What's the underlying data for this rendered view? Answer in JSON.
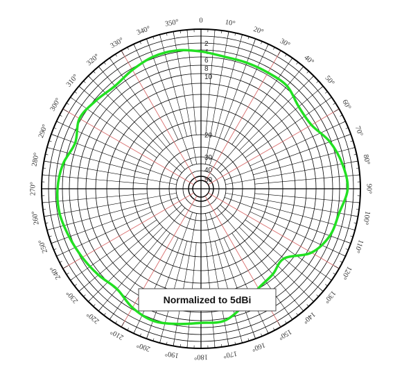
{
  "chart_data": {
    "type": "polar-line",
    "title": "",
    "annotation": "Normalized to 5dBi",
    "angle_tick_labels": [
      "0",
      "10°",
      "20°",
      "30°",
      "40°",
      "50°",
      "60°",
      "70°",
      "80°",
      "90°",
      "100°",
      "110°",
      "120°",
      "130°",
      "140°",
      "150°",
      "160°",
      "170°",
      "180°",
      "190°",
      "200°",
      "210°",
      "220°",
      "230°",
      "240°",
      "250°",
      "260°",
      "270°",
      "280°",
      "290°",
      "300°",
      "310°",
      "320°",
      "330°",
      "340°",
      "350°"
    ],
    "radial_tick_labels": [
      "2",
      "4",
      "6",
      "8",
      "10",
      "20",
      "30",
      "40",
      "50"
    ],
    "angle_direction": "clockwise",
    "zero_direction": "top",
    "grid": true,
    "series": [
      {
        "color": "#22e022",
        "theta_deg": [
          0,
          10,
          20,
          30,
          40,
          50,
          60,
          70,
          80,
          90,
          100,
          110,
          120,
          130,
          140,
          150,
          160,
          170,
          180,
          190,
          200,
          210,
          220,
          230,
          240,
          250,
          260,
          270,
          280,
          290,
          300,
          310,
          320,
          330,
          340,
          350
        ],
        "r_norm": [
          0.86,
          0.84,
          0.84,
          0.84,
          0.84,
          0.8,
          0.8,
          0.86,
          0.9,
          0.92,
          0.88,
          0.86,
          0.8,
          0.68,
          0.7,
          0.72,
          0.78,
          0.84,
          0.84,
          0.86,
          0.88,
          0.86,
          0.82,
          0.84,
          0.86,
          0.88,
          0.9,
          0.9,
          0.88,
          0.84,
          0.88,
          0.86,
          0.84,
          0.86,
          0.88,
          0.88
        ]
      }
    ]
  }
}
